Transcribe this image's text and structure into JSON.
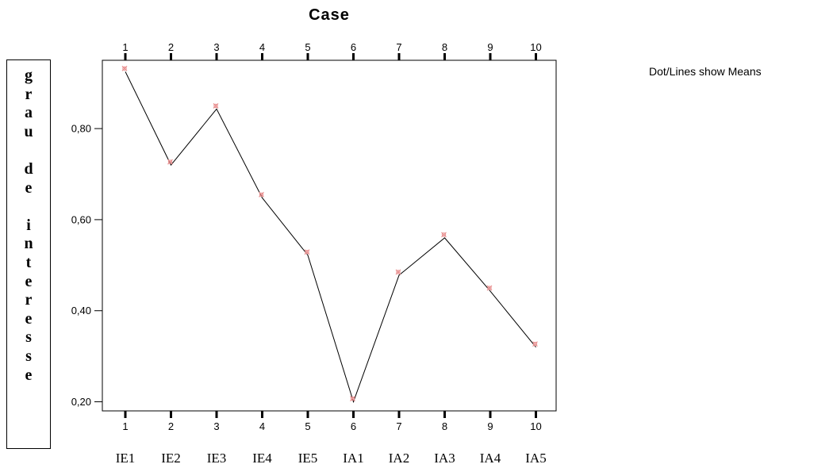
{
  "chart_data": {
    "type": "line",
    "title": "Case",
    "ylabel": "grau de interesse",
    "annotation": "Dot/Lines show Means",
    "x_top": [
      "1",
      "2",
      "3",
      "4",
      "5",
      "6",
      "7",
      "8",
      "9",
      "10"
    ],
    "x_bottom_numbers": [
      "1",
      "2",
      "3",
      "4",
      "5",
      "6",
      "7",
      "8",
      "9",
      "10"
    ],
    "categories": [
      "IE1",
      "IE2",
      "IE3",
      "IE4",
      "IE5",
      "IA1",
      "IA2",
      "IA3",
      "IA4",
      "IA5"
    ],
    "yticks": [
      "0,20",
      "0,40",
      "0,60",
      "0,80"
    ],
    "ytick_values": [
      0.2,
      0.4,
      0.6,
      0.8
    ],
    "ylim": [
      0.18,
      0.95
    ],
    "series": [
      {
        "values": [
          0.925,
          0.72,
          0.843,
          0.648,
          0.522,
          0.2,
          0.478,
          0.56,
          0.443,
          0.32
        ]
      }
    ],
    "colors": {
      "line": "#000000",
      "marker": "#e88f8f"
    },
    "grid": false
  }
}
